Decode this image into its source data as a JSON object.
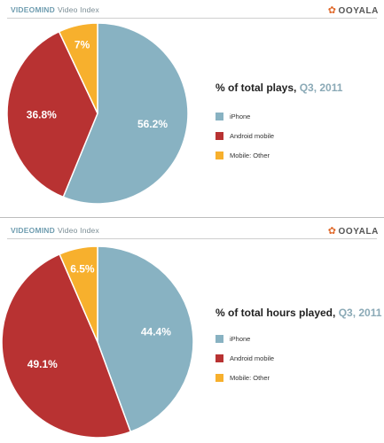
{
  "header": {
    "brand_bold": "VIDEOMIND",
    "brand_rest": "Video Index",
    "logo": "OOYALA"
  },
  "colors": {
    "iphone": "#88b2c2",
    "android": "#b83232",
    "other": "#f7b02d"
  },
  "charts": [
    {
      "title": "% of total plays,",
      "period": "Q3, 2011"
    },
    {
      "title": "% of total hours played,",
      "period": "Q3, 2011"
    }
  ],
  "chart_data": [
    {
      "type": "pie",
      "title": "% of total plays, Q3, 2011",
      "slices": [
        {
          "label": "iPhone",
          "value": 56.2,
          "display": "56.2%"
        },
        {
          "label": "Android mobile",
          "value": 36.8,
          "display": "36.8%"
        },
        {
          "label": "Mobile: Other",
          "value": 7,
          "display": "7%"
        }
      ],
      "legend_position": "right"
    },
    {
      "type": "pie",
      "title": "% of total hours played, Q3, 2011",
      "slices": [
        {
          "label": "iPhone",
          "value": 44.4,
          "display": "44.4%"
        },
        {
          "label": "Android mobile",
          "value": 49.1,
          "display": "49.1%"
        },
        {
          "label": "Mobile: Other",
          "value": 6.5,
          "display": "6.5%"
        }
      ],
      "legend_position": "right"
    }
  ]
}
